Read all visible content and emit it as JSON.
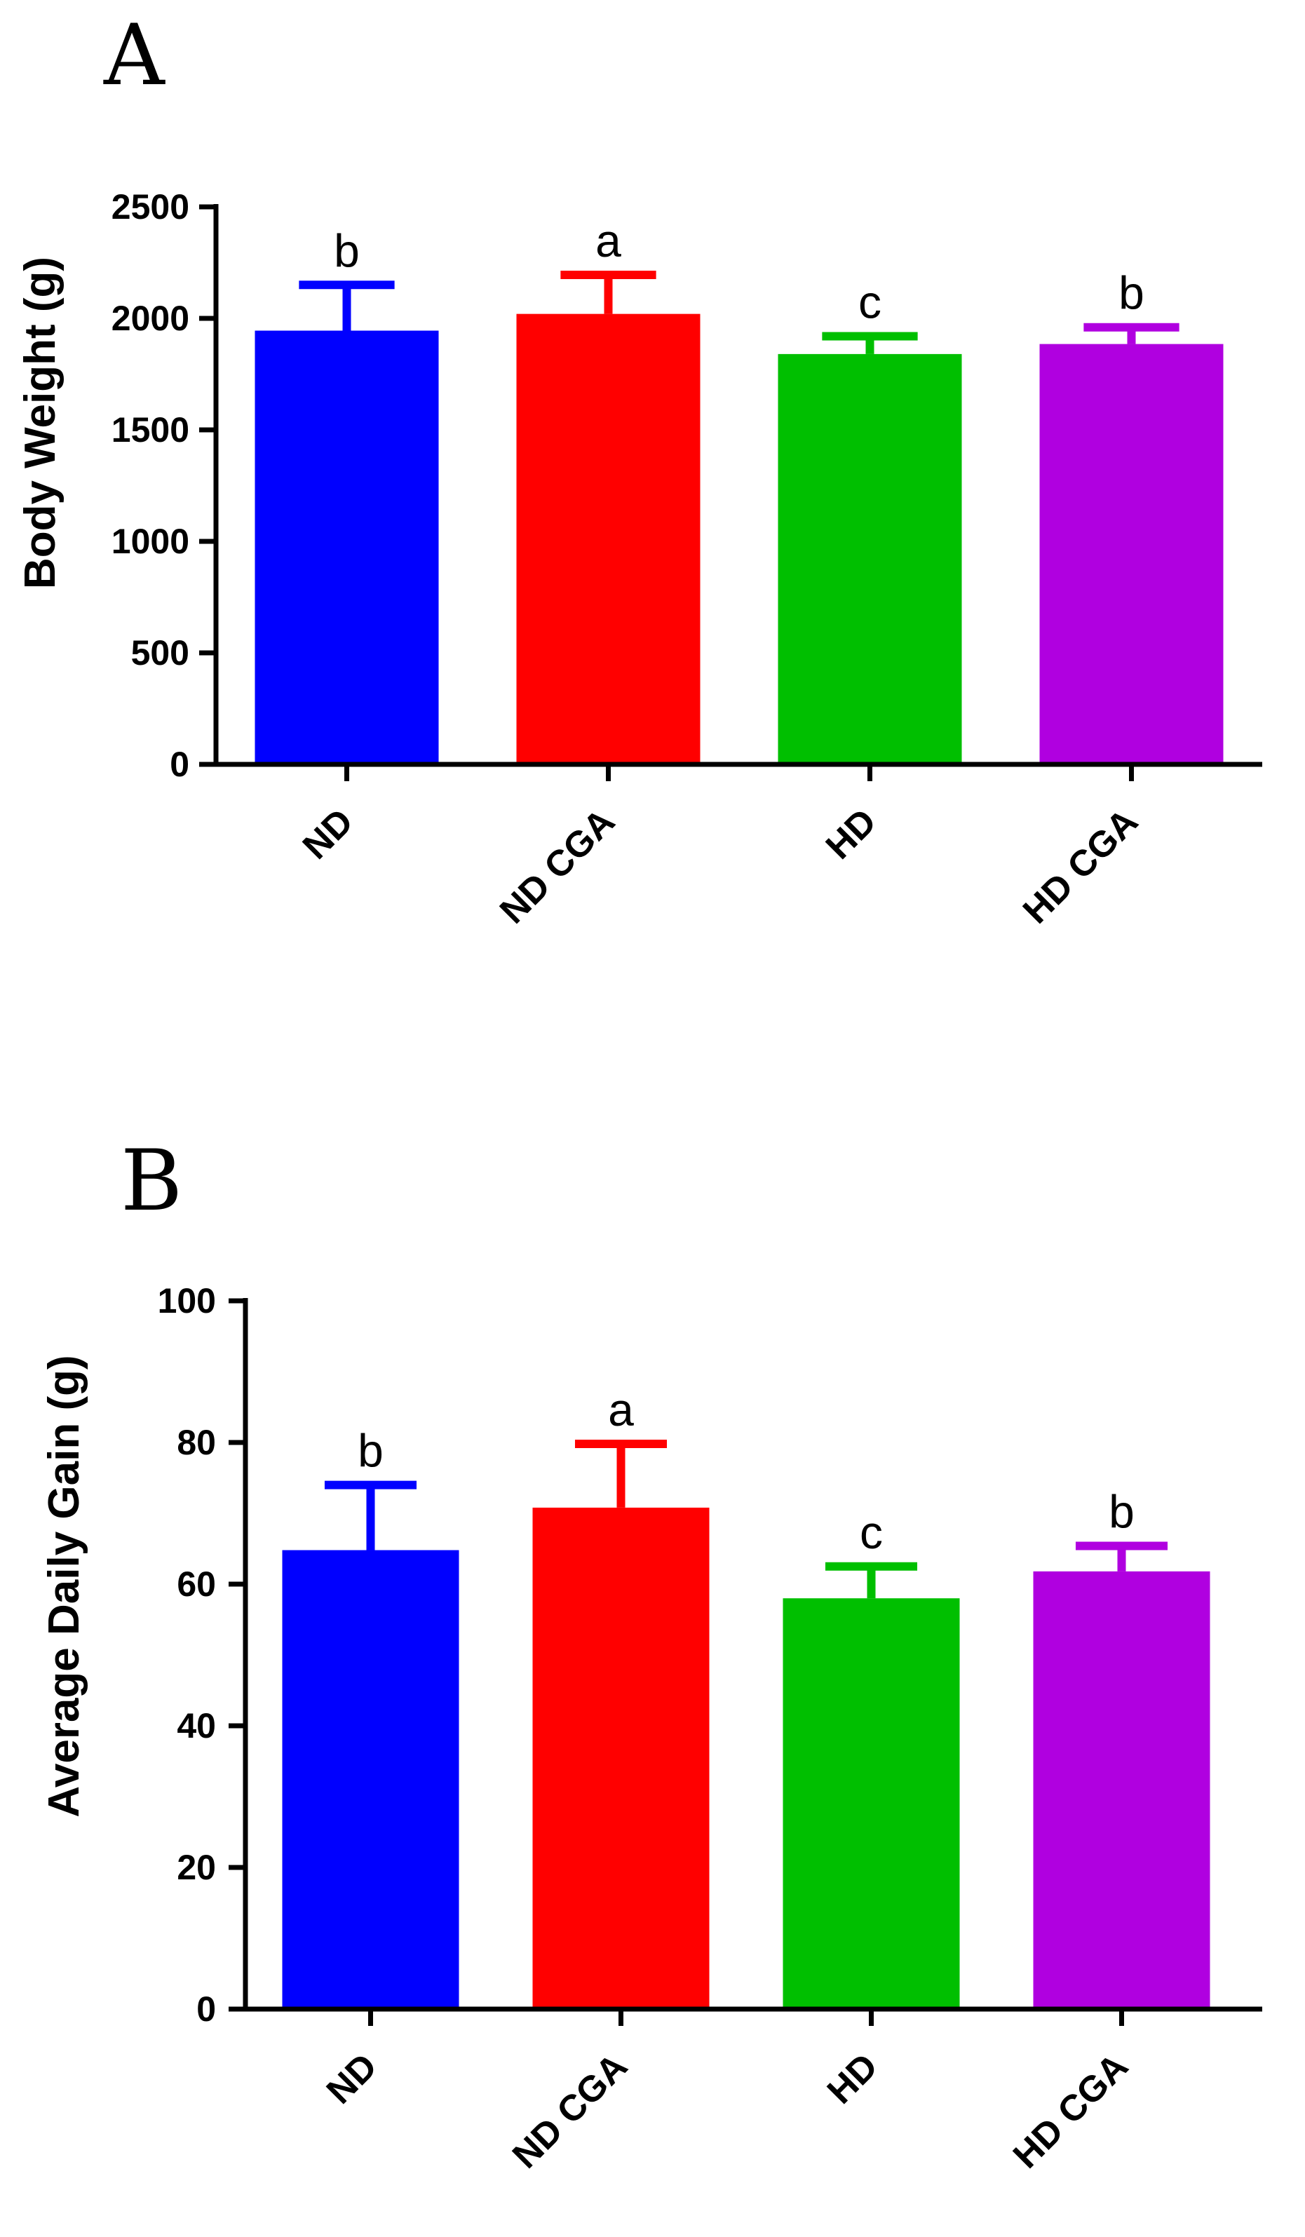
{
  "chart_data": [
    {
      "type": "bar",
      "panel": "A",
      "categories": [
        "ND",
        "ND CGA",
        "HD",
        "HD CGA"
      ],
      "values": [
        1945,
        2020,
        1840,
        1885
      ],
      "errors": [
        205,
        175,
        80,
        75
      ],
      "significance": [
        "b",
        "a",
        "c",
        "b"
      ],
      "colors": [
        "#0000ff",
        "#ff0000",
        "#00bf00",
        "#b000e0"
      ],
      "ylabel": "Body Weight (g)",
      "xlabel": "",
      "ylim": [
        0,
        2500
      ],
      "yticks": [
        0,
        500,
        1000,
        1500,
        2000,
        2500
      ],
      "grid": false
    },
    {
      "type": "bar",
      "panel": "B",
      "categories": [
        "ND",
        "ND CGA",
        "HD",
        "HD CGA"
      ],
      "values": [
        64.8,
        70.8,
        58.0,
        61.8
      ],
      "errors": [
        9.2,
        9.0,
        4.5,
        3.6
      ],
      "significance": [
        "b",
        "a",
        "c",
        "b"
      ],
      "colors": [
        "#0000ff",
        "#ff0000",
        "#00bf00",
        "#b000e0"
      ],
      "ylabel": "Average Daily Gain (g)",
      "xlabel": "",
      "ylim": [
        0,
        100
      ],
      "yticks": [
        0,
        20,
        40,
        60,
        80,
        100
      ],
      "grid": false
    }
  ]
}
